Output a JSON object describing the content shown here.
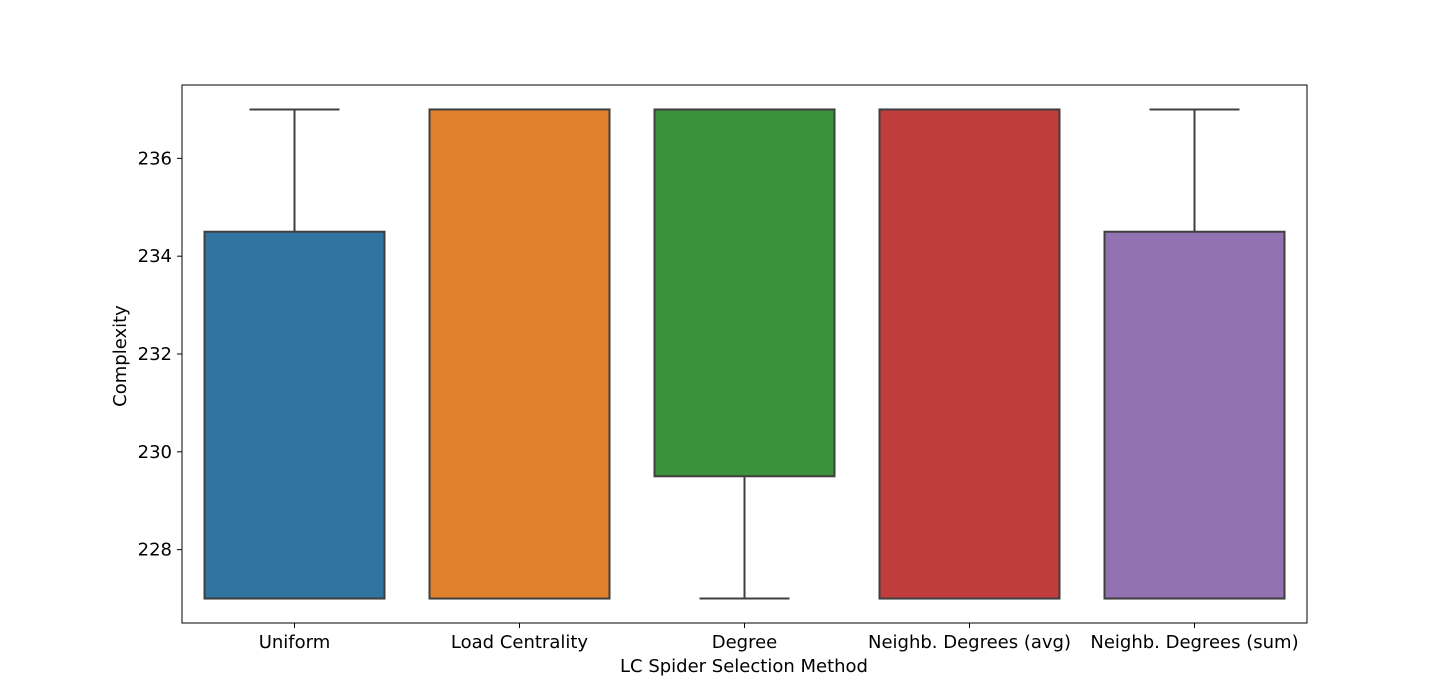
{
  "chart_data": {
    "type": "box",
    "title": "",
    "xlabel": "LC Spider Selection Method",
    "ylabel": "Complexity",
    "ylim": [
      226.5,
      237.5
    ],
    "yticks": [
      228,
      230,
      232,
      234,
      236
    ],
    "categories": [
      "Uniform",
      "Load Centrality",
      "Degree",
      "Neighb. Degrees (avg)",
      "Neighb. Degrees (sum)"
    ],
    "boxes": [
      {
        "name": "Uniform",
        "whisker_low": 227,
        "q1": 227,
        "median": 227,
        "q3": 234.5,
        "whisker_high": 237,
        "color": "#3274a1"
      },
      {
        "name": "Load Centrality",
        "whisker_low": 227,
        "q1": 227,
        "median": 237,
        "q3": 237,
        "whisker_high": 237,
        "color": "#e1812c"
      },
      {
        "name": "Degree",
        "whisker_low": 227,
        "q1": 229.5,
        "median": 237,
        "q3": 237,
        "whisker_high": 237,
        "color": "#3a923a"
      },
      {
        "name": "Neighb. Degrees (avg)",
        "whisker_low": 227,
        "q1": 227,
        "median": 237,
        "q3": 237,
        "whisker_high": 237,
        "color": "#c03d3e"
      },
      {
        "name": "Neighb. Degrees (sum)",
        "whisker_low": 227,
        "q1": 227,
        "median": 227,
        "q3": 234.5,
        "whisker_high": 237,
        "color": "#9372b2"
      }
    ],
    "line_color": "#3f3f3f",
    "grid": false,
    "legend": "none"
  }
}
